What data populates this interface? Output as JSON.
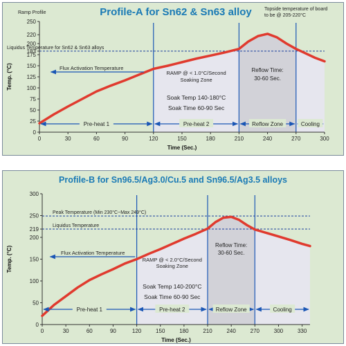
{
  "colors": {
    "curve": "#e03a2e",
    "dashed": "#1a3f9e",
    "arrow": "#1a56b5",
    "title": "#1a7ab5",
    "background": "#dce9d2",
    "shade": "#e6e6ee",
    "reflow_shade": "#c9c9cf"
  },
  "chart_data": [
    {
      "type": "line",
      "title": "Profile-A for Sn62 & Sn63 alloy",
      "ramp_label": "Ramp Profile",
      "xlabel": "Time (Sec.)",
      "ylabel": "Temp. (°C)",
      "xlim": [
        0,
        300
      ],
      "ylim": [
        0,
        250
      ],
      "x_ticks": [
        "0",
        "30",
        "60",
        "90",
        "120",
        "150",
        "180",
        "210",
        "240",
        "270",
        "300"
      ],
      "y_ticks": [
        "0",
        "25",
        "50",
        "75",
        "100",
        "125",
        "150",
        "175",
        "183",
        "200",
        "220",
        "250"
      ],
      "grid": false,
      "series": [
        {
          "x": [
            0,
            15,
            30,
            45,
            60,
            75,
            90,
            105,
            120,
            135,
            150,
            165,
            180,
            195,
            210,
            220,
            230,
            240,
            250,
            260,
            270,
            280,
            290,
            300
          ],
          "y": [
            20,
            40,
            58,
            75,
            92,
            105,
            117,
            130,
            143,
            150,
            158,
            166,
            173,
            180,
            188,
            205,
            217,
            222,
            214,
            200,
            188,
            178,
            168,
            160
          ]
        }
      ],
      "reference_lines": [
        {
          "y": 183,
          "label": "Liquidus Temperature for Sn62 & Sn63 alloys"
        }
      ],
      "top_note": "Topside temperature of board to be @ 205-220°C",
      "annotations": [
        {
          "text": "Flux Activation Temperature"
        },
        {
          "text": "RAMP @ < 1.0°C/Second"
        },
        {
          "text": "Soaking Zone"
        },
        {
          "text": "Soak Temp 140-180°C"
        },
        {
          "text": "Soak Time 60-90 Sec"
        },
        {
          "text": "Reflow Time:"
        },
        {
          "text": "30-60 Sec."
        }
      ],
      "zones": [
        {
          "label": "Pre-heat 1",
          "start": 0,
          "end": 120
        },
        {
          "label": "Pre-heat 2",
          "start": 120,
          "end": 210
        },
        {
          "label": "Reflow Zone",
          "start": 210,
          "end": 270
        },
        {
          "label": "Cooling",
          "start": 270,
          "end": 300
        }
      ]
    },
    {
      "type": "line",
      "title": "Profile-B for Sn96.5/Ag3.0/Cu.5 and Sn96.5/Ag3.5 alloys",
      "xlabel": "Time (Sec.)",
      "ylabel": "Temp. (°C)",
      "xlim": [
        0,
        340
      ],
      "ylim": [
        0,
        300
      ],
      "x_ticks": [
        "0",
        "30",
        "60",
        "90",
        "120",
        "150",
        "180",
        "210",
        "240",
        "270",
        "300",
        "330"
      ],
      "y_ticks": [
        "0",
        "50",
        "100",
        "150",
        "200",
        "219",
        "250",
        "300"
      ],
      "grid": false,
      "series": [
        {
          "x": [
            0,
            15,
            30,
            45,
            60,
            75,
            90,
            105,
            120,
            135,
            150,
            165,
            180,
            195,
            210,
            220,
            230,
            240,
            250,
            260,
            270,
            285,
            300,
            315,
            330,
            340
          ],
          "y": [
            20,
            45,
            65,
            85,
            102,
            115,
            127,
            140,
            150,
            162,
            173,
            185,
            197,
            208,
            220,
            235,
            245,
            247,
            240,
            228,
            218,
            210,
            202,
            194,
            185,
            180
          ]
        }
      ],
      "reference_lines": [
        {
          "y": 249,
          "label": "Peak Temperature (Min 230°C~Max 249°C)"
        },
        {
          "y": 219,
          "label": "Liquidus Temperature"
        }
      ],
      "annotations": [
        {
          "text": "Flux Activation Temperature"
        },
        {
          "text": "RAMP @ < 2.0°C/Second"
        },
        {
          "text": "Soaking Zone"
        },
        {
          "text": "Soak Temp 140-200°C"
        },
        {
          "text": "Soak Time 60-90 Sec"
        },
        {
          "text": "Reflow Time:"
        },
        {
          "text": "30-60 Sec."
        }
      ],
      "zones": [
        {
          "label": "Pre-heat 1",
          "start": 0,
          "end": 120
        },
        {
          "label": "Pre-heat 2",
          "start": 120,
          "end": 210
        },
        {
          "label": "Reflow Zone",
          "start": 210,
          "end": 270
        },
        {
          "label": "Cooling",
          "start": 270,
          "end": 340
        }
      ]
    }
  ]
}
